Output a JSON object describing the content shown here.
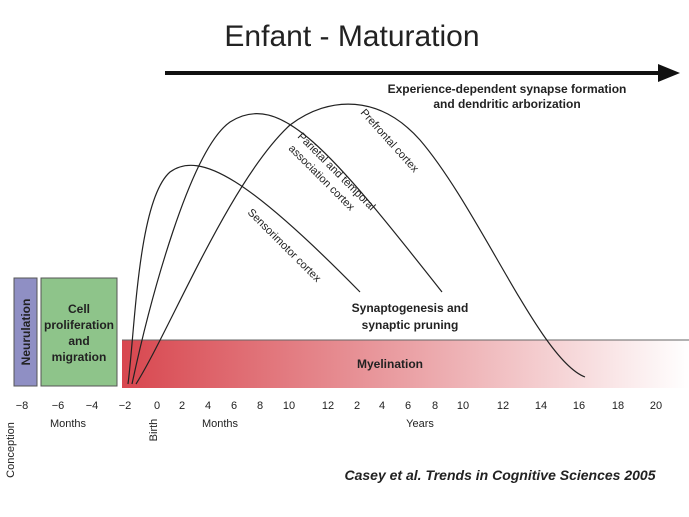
{
  "title": "Enfant - Maturation",
  "arrow_label": [
    "Experience-dependent synapse formation",
    "and dendritic arborization"
  ],
  "curves": [
    {
      "label": [
        "Prefrontal cortex"
      ]
    },
    {
      "label": [
        "Parietal and temporal",
        "association cortex"
      ]
    },
    {
      "label": [
        "Sensorimotor cortex"
      ]
    }
  ],
  "synaptogenesis_label": [
    "Synaptogenesis and",
    "synaptic pruning"
  ],
  "neurulation": "Neurulation",
  "cell_box": [
    "Cell",
    "proliferation",
    "and",
    "migration"
  ],
  "myelination": "Myelination",
  "axis": {
    "ticks": [
      "−8",
      "−6",
      "−4",
      "−2",
      "0",
      "2",
      "4",
      "6",
      "8",
      "10",
      "12",
      "2",
      "4",
      "6",
      "8",
      "10",
      "12",
      "14",
      "16",
      "18",
      "20"
    ],
    "conception": "Conception",
    "months_prenatal": "Months",
    "birth": "Birth",
    "months_postnatal": "Months",
    "years": "Years"
  },
  "citation": "Casey et al. Trends in Cognitive Sciences 2005"
}
